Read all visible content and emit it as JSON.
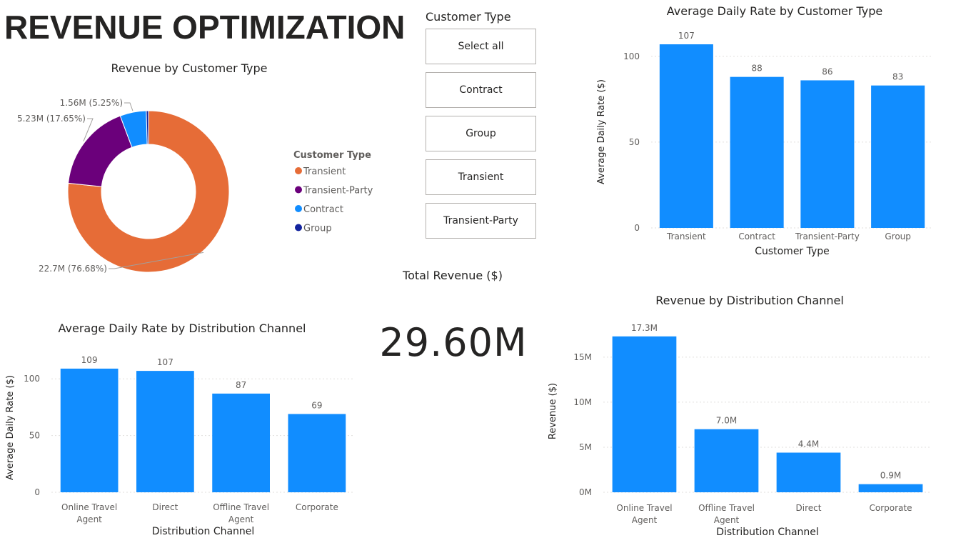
{
  "title": "REVENUE OPTIMIZATION",
  "colors": {
    "bar": "#118dff",
    "transient": "#e66c37",
    "transient_party": "#6b007b",
    "contract": "#118dff",
    "group": "#12239e",
    "text": "#252423",
    "muted": "#605e5c",
    "grid": "#e1dfdd"
  },
  "slicer": {
    "title": "Customer Type",
    "options": [
      "Select all",
      "Contract",
      "Group",
      "Transient",
      "Transient-Party"
    ]
  },
  "card": {
    "label": "Total Revenue ($)",
    "value": "29.60M"
  },
  "chart_data": [
    {
      "id": "revenue-by-customer-type",
      "type": "pie",
      "variant": "donut",
      "title": "Revenue by Customer Type",
      "legend_title": "Customer Type",
      "legend_position": "right",
      "slices": [
        {
          "name": "Transient",
          "value": 22.7,
          "percent": 76.68,
          "label": "22.7M (76.68%)",
          "color": "#e66c37"
        },
        {
          "name": "Transient-Party",
          "value": 5.23,
          "percent": 17.65,
          "label": "5.23M (17.65%)",
          "color": "#6b007b"
        },
        {
          "name": "Contract",
          "value": 1.56,
          "percent": 5.25,
          "label": "1.56M (5.25%)",
          "color": "#118dff"
        },
        {
          "name": "Group",
          "value": 0.13,
          "percent": 0.42,
          "label": "",
          "color": "#12239e"
        }
      ]
    },
    {
      "id": "adr-by-customer-type",
      "type": "bar",
      "title": "Average Daily Rate by Customer Type",
      "xlabel": "Customer Type",
      "ylabel": "Average Daily Rate ($)",
      "categories": [
        [
          "Transient"
        ],
        [
          "Contract"
        ],
        [
          "Transient-Party"
        ],
        [
          "Group"
        ]
      ],
      "values": [
        107,
        88,
        86,
        83
      ],
      "data_labels": [
        "107",
        "88",
        "86",
        "83"
      ],
      "ylim": [
        0,
        112
      ],
      "yticks": [
        0,
        50,
        100
      ],
      "ytick_labels": [
        "0",
        "50",
        "100"
      ],
      "grid": true
    },
    {
      "id": "adr-by-distribution-channel",
      "type": "bar",
      "title": "Average Daily Rate by Distribution Channel",
      "xlabel": "Distribution Channel",
      "ylabel": "Average Daily Rate ($)",
      "categories": [
        [
          "Online Travel",
          "Agent"
        ],
        [
          "Direct"
        ],
        [
          "Offline Travel",
          "Agent"
        ],
        [
          "Corporate"
        ]
      ],
      "values": [
        109,
        107,
        87,
        69
      ],
      "data_labels": [
        "109",
        "107",
        "87",
        "69"
      ],
      "ylim": [
        0,
        114
      ],
      "yticks": [
        0,
        50,
        100
      ],
      "ytick_labels": [
        "0",
        "50",
        "100"
      ],
      "grid": true
    },
    {
      "id": "revenue-by-distribution-channel",
      "type": "bar",
      "title": "Revenue by Distribution Channel",
      "xlabel": "Distribution Channel",
      "ylabel": "Revenue ($)",
      "categories": [
        [
          "Online Travel",
          "Agent"
        ],
        [
          "Offline Travel",
          "Agent"
        ],
        [
          "Direct"
        ],
        [
          "Corporate"
        ]
      ],
      "values": [
        17.3,
        7.0,
        4.4,
        0.9
      ],
      "data_labels": [
        "17.3M",
        "7.0M",
        "4.4M",
        "0.9M"
      ],
      "ylim": [
        0,
        18
      ],
      "yticks": [
        0,
        5,
        10,
        15
      ],
      "ytick_labels": [
        "0M",
        "5M",
        "10M",
        "15M"
      ],
      "grid": true
    }
  ]
}
